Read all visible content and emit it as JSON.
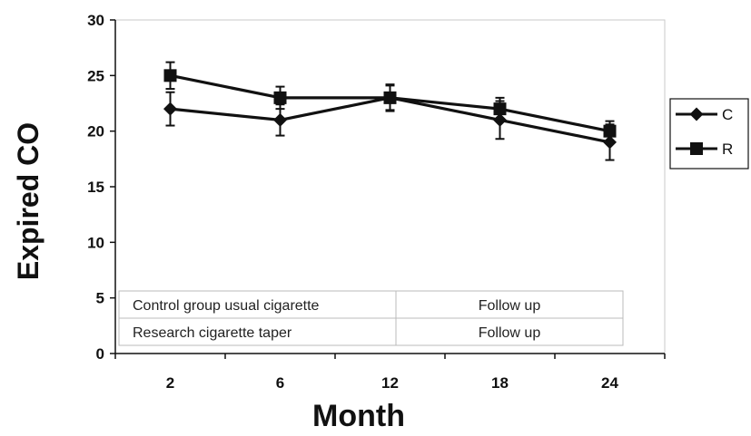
{
  "chart_data": {
    "type": "line",
    "xlabel": "Month",
    "ylabel": "Expired CO",
    "categories": [
      "2",
      "6",
      "12",
      "18",
      "24"
    ],
    "ylim": [
      0,
      30
    ],
    "yticks": [
      0,
      5,
      10,
      15,
      20,
      25,
      30
    ],
    "grid": false,
    "legend_position": "right",
    "series": [
      {
        "name": "C",
        "marker": "diamond",
        "color": "#111111",
        "values": [
          22,
          21,
          23,
          21,
          19
        ],
        "error": [
          1.5,
          1.4,
          1.1,
          1.7,
          1.6
        ]
      },
      {
        "name": "R",
        "marker": "square",
        "color": "#111111",
        "values": [
          25,
          23,
          23,
          22,
          20
        ],
        "error": [
          1.2,
          1.0,
          1.2,
          1.0,
          0.9
        ]
      }
    ],
    "data_table": {
      "rows": [
        [
          "Control group usual cigarette",
          "Follow up"
        ],
        [
          "Research cigarette taper",
          "Follow up"
        ]
      ]
    }
  }
}
